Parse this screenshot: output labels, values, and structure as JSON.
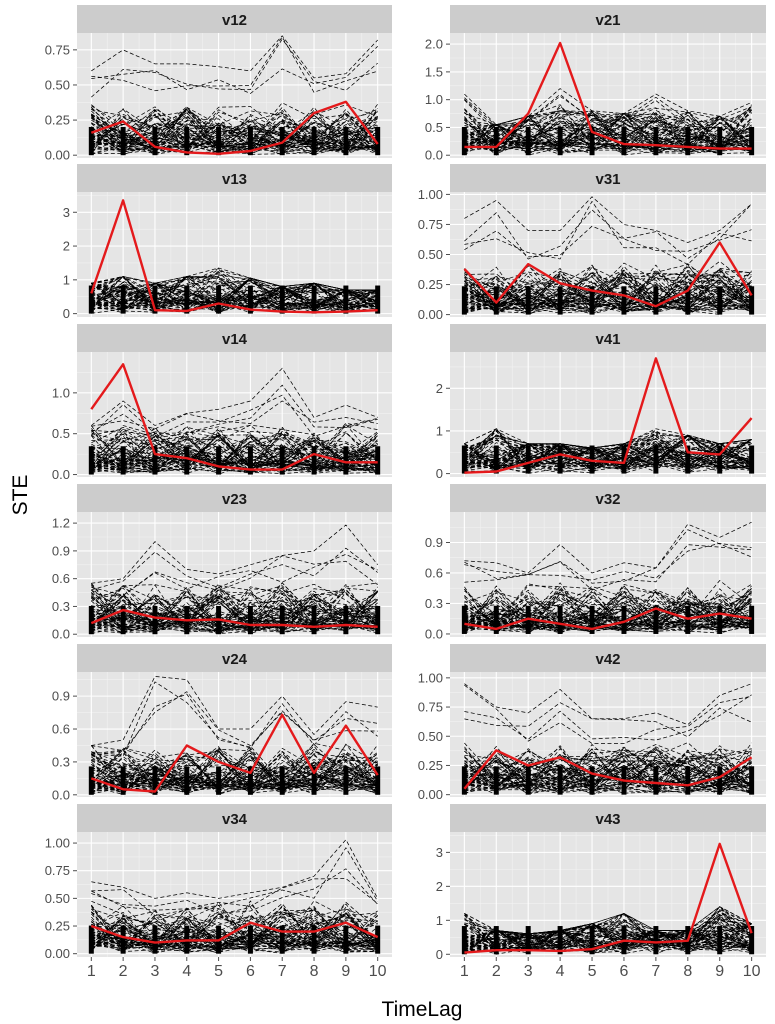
{
  "chart_data": {
    "type": "line",
    "title": "",
    "xlabel": "TimeLag",
    "ylabel": "STE",
    "x": [
      1,
      2,
      3,
      4,
      5,
      6,
      7,
      8,
      9,
      10
    ],
    "xticks": [
      "1",
      "2",
      "3",
      "4",
      "5",
      "6",
      "7",
      "8",
      "9",
      "10"
    ],
    "xlim": [
      0.55,
      10.45
    ],
    "grid": true,
    "legend": "none",
    "background_lines": {
      "color": "#000000",
      "style": "dashed",
      "description_of_values": "surrogate series"
    },
    "highlight_color": "#e41a1c",
    "panels": [
      {
        "name": "v12",
        "ylim": [
          -0.02,
          0.87
        ],
        "yticks": [
          0,
          0.25,
          0.5,
          0.75
        ],
        "ytick_labels": [
          "0.00",
          "0.25",
          "0.50",
          "0.75"
        ],
        "series": [
          {
            "values": [
              0.16,
              0.24,
              0.06,
              0.02,
              0.01,
              0.03,
              0.09,
              0.3,
              0.38,
              0.08
            ]
          }
        ],
        "bg_max": [
          0.6,
          0.75,
          0.65,
          0.65,
          0.63,
          0.6,
          0.85,
          0.55,
          0.58,
          0.82
        ]
      },
      {
        "name": "v21",
        "ylim": [
          -0.05,
          2.2
        ],
        "yticks": [
          0,
          0.5,
          1.0,
          1.5,
          2.0
        ],
        "ytick_labels": [
          "0.0",
          "0.5",
          "1.0",
          "1.5",
          "2.0"
        ],
        "series": [
          {
            "values": [
              0.15,
              0.15,
              0.75,
              2.02,
              0.42,
              0.2,
              0.18,
              0.15,
              0.12,
              0.12
            ]
          }
        ],
        "bg_max": [
          1.1,
          0.55,
          0.7,
          1.2,
          0.8,
          0.75,
          1.1,
          0.8,
          0.7,
          0.95
        ]
      },
      {
        "name": "v13",
        "ylim": [
          -0.1,
          3.6
        ],
        "yticks": [
          0,
          1,
          2,
          3
        ],
        "ytick_labels": [
          "0",
          "1",
          "2",
          "3"
        ],
        "series": [
          {
            "values": [
              0.6,
              3.35,
              0.1,
              0.08,
              0.3,
              0.12,
              0.06,
              0.04,
              0.06,
              0.1
            ]
          }
        ],
        "bg_max": [
          0.9,
          1.1,
          0.9,
          1.1,
          1.35,
          1.05,
          0.8,
          0.9,
          0.7,
          0.7
        ]
      },
      {
        "name": "v31",
        "ylim": [
          -0.02,
          1.02
        ],
        "yticks": [
          0,
          0.25,
          0.5,
          0.75,
          1.0
        ],
        "ytick_labels": [
          "0.00",
          "0.25",
          "0.50",
          "0.75",
          "1.00"
        ],
        "series": [
          {
            "values": [
              0.38,
              0.1,
              0.42,
              0.26,
              0.2,
              0.16,
              0.07,
              0.2,
              0.6,
              0.16
            ]
          }
        ],
        "bg_max": [
          0.8,
          0.95,
          0.7,
          0.7,
          0.98,
          0.75,
          0.7,
          0.6,
          0.7,
          0.92
        ]
      },
      {
        "name": "v14",
        "ylim": [
          -0.03,
          1.5
        ],
        "yticks": [
          0,
          0.5,
          1.0
        ],
        "ytick_labels": [
          "0.0",
          "0.5",
          "1.0"
        ],
        "series": [
          {
            "values": [
              0.8,
              1.35,
              0.25,
              0.2,
              0.1,
              0.06,
              0.06,
              0.25,
              0.15,
              0.15
            ]
          }
        ],
        "bg_max": [
          0.6,
          0.9,
          0.6,
          0.75,
          0.8,
          0.9,
          1.3,
          0.7,
          0.85,
          0.7
        ]
      },
      {
        "name": "v41",
        "ylim": [
          -0.08,
          2.85
        ],
        "yticks": [
          0,
          1,
          2
        ],
        "ytick_labels": [
          "0",
          "1",
          "2"
        ],
        "series": [
          {
            "values": [
              0.02,
              0.05,
              0.25,
              0.45,
              0.3,
              0.25,
              2.7,
              0.5,
              0.45,
              1.3
            ]
          }
        ],
        "bg_max": [
          0.7,
          1.05,
          0.7,
          0.7,
          0.6,
          0.7,
          1.05,
          0.9,
          0.7,
          0.8
        ]
      },
      {
        "name": "v23",
        "ylim": [
          -0.03,
          1.32
        ],
        "yticks": [
          0,
          0.3,
          0.6,
          0.9,
          1.2
        ],
        "ytick_labels": [
          "0.0",
          "0.3",
          "0.6",
          "0.9",
          "1.2"
        ],
        "series": [
          {
            "values": [
              0.12,
              0.26,
              0.18,
              0.15,
              0.16,
              0.1,
              0.1,
              0.08,
              0.1,
              0.08
            ]
          }
        ],
        "bg_max": [
          0.55,
          0.6,
          1.0,
          0.7,
          0.65,
          0.75,
          0.85,
          0.9,
          1.18,
          0.75
        ]
      },
      {
        "name": "v32",
        "ylim": [
          -0.03,
          1.2
        ],
        "yticks": [
          0,
          0.3,
          0.6,
          0.9
        ],
        "ytick_labels": [
          "0.0",
          "0.3",
          "0.6",
          "0.9"
        ],
        "series": [
          {
            "values": [
              0.1,
              0.05,
              0.15,
              0.1,
              0.05,
              0.12,
              0.25,
              0.15,
              0.2,
              0.15
            ]
          }
        ],
        "bg_max": [
          0.72,
          0.7,
          0.6,
          0.88,
          0.6,
          0.7,
          0.65,
          1.08,
          0.95,
          1.1
        ]
      },
      {
        "name": "v24",
        "ylim": [
          -0.02,
          1.12
        ],
        "yticks": [
          0,
          0.3,
          0.6,
          0.9
        ],
        "ytick_labels": [
          "0.0",
          "0.3",
          "0.6",
          "0.9"
        ],
        "series": [
          {
            "values": [
              0.15,
              0.05,
              0.03,
              0.45,
              0.3,
              0.2,
              0.73,
              0.2,
              0.63,
              0.18
            ]
          }
        ],
        "bg_max": [
          0.45,
          0.5,
          1.08,
          1.05,
          0.6,
          0.6,
          0.9,
          0.55,
          0.85,
          0.8
        ]
      },
      {
        "name": "v42",
        "ylim": [
          -0.02,
          1.05
        ],
        "yticks": [
          0,
          0.25,
          0.5,
          0.75,
          1.0
        ],
        "ytick_labels": [
          "0.00",
          "0.25",
          "0.50",
          "0.75",
          "1.00"
        ],
        "series": [
          {
            "values": [
              0.05,
              0.38,
              0.25,
              0.32,
              0.18,
              0.12,
              0.1,
              0.08,
              0.15,
              0.32
            ]
          }
        ],
        "bg_max": [
          0.95,
          0.75,
          0.7,
          0.9,
          0.65,
          0.65,
          0.7,
          0.6,
          0.85,
          0.95
        ]
      },
      {
        "name": "v34",
        "ylim": [
          -0.03,
          1.1
        ],
        "yticks": [
          0,
          0.25,
          0.5,
          0.75,
          1.0
        ],
        "ytick_labels": [
          "0.00",
          "0.25",
          "0.50",
          "0.75",
          "1.00"
        ],
        "series": [
          {
            "values": [
              0.25,
              0.15,
              0.1,
              0.12,
              0.12,
              0.28,
              0.2,
              0.2,
              0.28,
              0.15
            ]
          }
        ],
        "bg_max": [
          0.65,
          0.6,
          0.5,
          0.55,
          0.5,
          0.55,
          0.6,
          0.7,
          1.03,
          0.5
        ]
      },
      {
        "name": "v43",
        "ylim": [
          -0.08,
          3.6
        ],
        "yticks": [
          0,
          1,
          2,
          3
        ],
        "ytick_labels": [
          "0",
          "1",
          "2",
          "3"
        ],
        "series": [
          {
            "values": [
              0.05,
              0.12,
              0.12,
              0.1,
              0.15,
              0.4,
              0.35,
              0.4,
              3.25,
              0.62
            ]
          }
        ],
        "bg_max": [
          1.2,
          0.7,
          0.6,
          0.7,
          0.9,
          1.2,
          0.7,
          0.7,
          1.4,
          0.9
        ]
      }
    ]
  }
}
